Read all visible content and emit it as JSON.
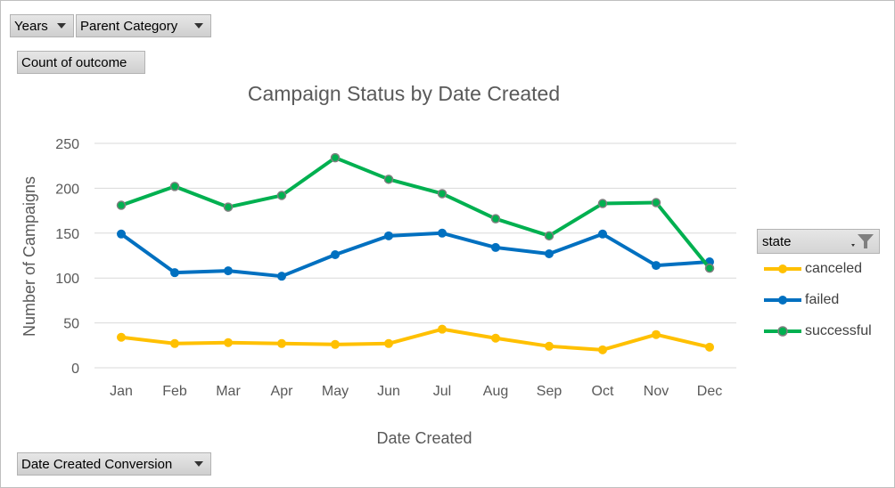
{
  "controls": {
    "years_label": "Years",
    "parent_category_label": "Parent Category",
    "value_field_label": "Count of outcome",
    "axis_field_label": "Date Created Conversion"
  },
  "legend": {
    "header": "state",
    "filter_icon": "funnel-icon",
    "dropdown_icon": "chevron-down-icon"
  },
  "chart_data": {
    "type": "line",
    "title": "Campaign Status by Date Created",
    "xlabel": "Date Created",
    "ylabel": "Number of Campaigns",
    "categories": [
      "Jan",
      "Feb",
      "Mar",
      "Apr",
      "May",
      "Jun",
      "Jul",
      "Aug",
      "Sep",
      "Oct",
      "Nov",
      "Dec"
    ],
    "ylim": [
      0,
      250
    ],
    "yticks": [
      0,
      50,
      100,
      150,
      200,
      250
    ],
    "grid": true,
    "legend_position": "right",
    "series": [
      {
        "name": "canceled",
        "color": "#FFC000",
        "values": [
          34,
          27,
          28,
          27,
          26,
          27,
          43,
          33,
          24,
          20,
          37,
          23
        ]
      },
      {
        "name": "failed",
        "color": "#0070C0",
        "values": [
          149,
          106,
          108,
          102,
          126,
          147,
          150,
          134,
          127,
          149,
          114,
          118
        ]
      },
      {
        "name": "successful",
        "color": "#00B050",
        "values": [
          181,
          202,
          179,
          192,
          234,
          210,
          194,
          166,
          147,
          183,
          184,
          111
        ]
      }
    ]
  }
}
